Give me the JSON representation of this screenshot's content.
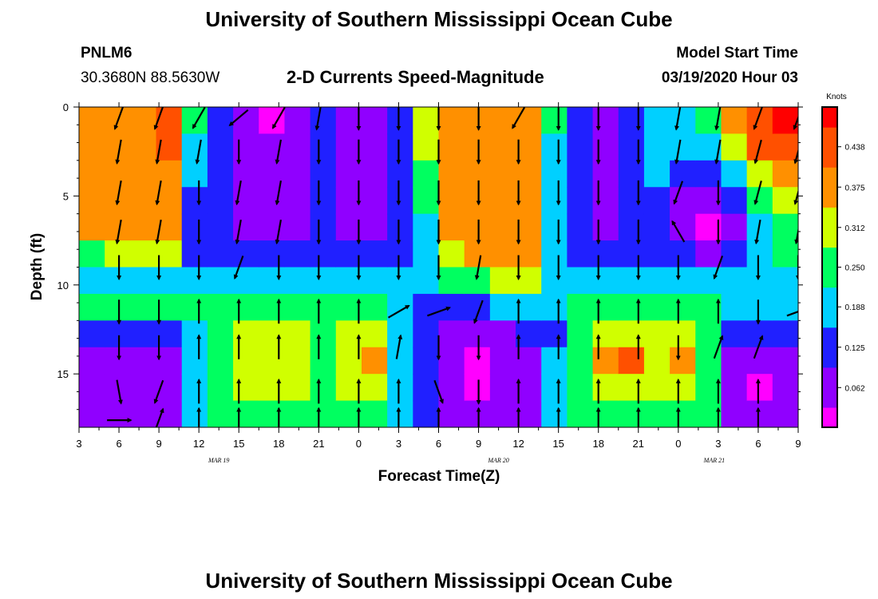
{
  "header": {
    "title": "University of Southern Mississippi Ocean Cube",
    "station": "PNLM6",
    "coordinates": "30.3680N 88.5630W",
    "subtitle": "2-D Currents Speed-Magnitude",
    "model_start_label": "Model Start Time",
    "model_start_value": "03/19/2020 Hour 03"
  },
  "footer": {
    "title": "University of Southern Mississippi Ocean Cube"
  },
  "chart_data": {
    "type": "heatmap",
    "title": "2-D Currents Speed-Magnitude",
    "xlabel": "Forecast Time(Z)",
    "ylabel": "Depth (ft)",
    "x_hours": [
      3,
      6,
      9,
      12,
      15,
      18,
      21,
      0,
      3,
      6,
      9,
      12,
      15,
      18,
      21,
      0,
      3,
      6,
      9
    ],
    "x_tick_labels": [
      "3",
      "6",
      "9",
      "12",
      "15",
      "18",
      "21",
      "0",
      "3",
      "6",
      "9",
      "12",
      "15",
      "18",
      "21",
      "0",
      "3",
      "6",
      "9"
    ],
    "date_labels": [
      {
        "text": "MAR 19",
        "index": 3.5
      },
      {
        "text": "MAR 20",
        "index": 10.5
      },
      {
        "text": "MAR 21",
        "index": 15.9
      }
    ],
    "y_ticks": [
      0,
      5,
      10,
      15
    ],
    "ylim": [
      0,
      18
    ],
    "colorbar": {
      "unit": "Knots",
      "ticks": [
        "0.438",
        "0.375",
        "0.312",
        "0.250",
        "0.188",
        "0.125",
        "0.062"
      ],
      "tick_values": [
        0.438,
        0.375,
        0.312,
        0.25,
        0.188,
        0.125,
        0.062
      ],
      "range": [
        0,
        0.5
      ],
      "colors": [
        "#ff00ff",
        "#8000ff",
        "#0000ff",
        "#00ffff",
        "#00ff00",
        "#ffff00",
        "#ff8000",
        "#ff0000"
      ]
    },
    "columns_levels": {
      "comment": "speed level index (0-8, magenta->red) per forecast column, listed for depth bands 0-1.5,1.5-3,3-4.5,4.5-6,6-7.5,7.5-9,9-10.5,10.5-12,12-13.5,13.5-15,15-16.5,16.5-18 ft",
      "depth_bands": [
        0.75,
        2.25,
        3.75,
        5.25,
        6.75,
        8.25,
        9.75,
        11.25,
        12.75,
        14.25,
        15.75,
        17.25
      ],
      "levels": [
        [
          6,
          6,
          6,
          6,
          6,
          4,
          3,
          4,
          2,
          1,
          1,
          1
        ],
        [
          6,
          6,
          6,
          6,
          6,
          5,
          3,
          4,
          2,
          1,
          1,
          1
        ],
        [
          6,
          6,
          6,
          6,
          6,
          5,
          3,
          4,
          2,
          1,
          1,
          1
        ],
        [
          7,
          7,
          6,
          6,
          6,
          5,
          3,
          4,
          2,
          1,
          1,
          1
        ],
        [
          4,
          3,
          3,
          2,
          2,
          2,
          3,
          4,
          3,
          3,
          3,
          3
        ],
        [
          2,
          2,
          2,
          2,
          2,
          2,
          3,
          4,
          4,
          4,
          4,
          4
        ],
        [
          1,
          1,
          1,
          1,
          1,
          2,
          3,
          4,
          5,
          5,
          5,
          4
        ],
        [
          0,
          1,
          1,
          1,
          1,
          2,
          3,
          4,
          5,
          5,
          5,
          4
        ],
        [
          1,
          1,
          1,
          1,
          1,
          2,
          3,
          4,
          5,
          5,
          5,
          4
        ],
        [
          2,
          2,
          2,
          2,
          2,
          2,
          3,
          4,
          4,
          4,
          4,
          4
        ],
        [
          1,
          1,
          1,
          1,
          1,
          2,
          3,
          4,
          5,
          5,
          5,
          4
        ],
        [
          1,
          1,
          1,
          1,
          1,
          2,
          3,
          4,
          5,
          6,
          5,
          4
        ],
        [
          2,
          2,
          2,
          2,
          2,
          2,
          3,
          3,
          3,
          3,
          3,
          3
        ],
        [
          5,
          5,
          4,
          4,
          3,
          3,
          3,
          2,
          2,
          2,
          2,
          2
        ],
        [
          6,
          6,
          6,
          6,
          6,
          5,
          4,
          2,
          1,
          1,
          1,
          1
        ],
        [
          6,
          6,
          6,
          6,
          6,
          6,
          4,
          2,
          1,
          0,
          0,
          1
        ],
        [
          6,
          6,
          6,
          6,
          6,
          6,
          5,
          3,
          1,
          1,
          1,
          1
        ],
        [
          6,
          6,
          6,
          6,
          6,
          6,
          5,
          3,
          2,
          1,
          1,
          1
        ],
        [
          4,
          3,
          3,
          3,
          3,
          3,
          3,
          3,
          2,
          3,
          3,
          3
        ],
        [
          2,
          2,
          2,
          2,
          2,
          2,
          3,
          4,
          4,
          4,
          4,
          4
        ],
        [
          1,
          1,
          1,
          1,
          1,
          2,
          3,
          4,
          5,
          6,
          5,
          4
        ],
        [
          2,
          2,
          2,
          2,
          2,
          2,
          3,
          4,
          5,
          7,
          5,
          4
        ],
        [
          3,
          3,
          3,
          2,
          2,
          2,
          3,
          4,
          5,
          5,
          5,
          4
        ],
        [
          3,
          3,
          2,
          1,
          1,
          2,
          3,
          4,
          5,
          6,
          5,
          4
        ],
        [
          4,
          3,
          2,
          1,
          0,
          1,
          3,
          4,
          4,
          4,
          4,
          4
        ],
        [
          6,
          5,
          3,
          2,
          1,
          2,
          3,
          3,
          2,
          1,
          1,
          1
        ],
        [
          7,
          7,
          5,
          4,
          3,
          3,
          3,
          3,
          2,
          1,
          0,
          1
        ],
        [
          8,
          7,
          6,
          5,
          4,
          4,
          3,
          3,
          2,
          1,
          1,
          1
        ]
      ]
    },
    "vectors": {
      "comment": "current direction in degrees clockwise from up (north) for each arrow row; arrows at every forecast tick",
      "depth_rows": [
        0.6,
        2.5,
        4.8,
        7.0,
        9.0,
        11.5,
        13.5,
        16.0,
        17.6
      ],
      "directions": [
        [
          null,
          200,
          200,
          210,
          230,
          210,
          190,
          180,
          180,
          180,
          180,
          210,
          180,
          180,
          180,
          190,
          190,
          200,
          200
        ],
        [
          null,
          190,
          190,
          190,
          180,
          190,
          180,
          180,
          180,
          180,
          180,
          180,
          180,
          180,
          180,
          190,
          190,
          195,
          195
        ],
        [
          null,
          190,
          190,
          180,
          190,
          190,
          180,
          180,
          180,
          180,
          180,
          180,
          180,
          180,
          180,
          200,
          180,
          195,
          195
        ],
        [
          null,
          190,
          190,
          180,
          190,
          190,
          180,
          180,
          180,
          180,
          180,
          180,
          180,
          180,
          180,
          330,
          180,
          190,
          190
        ],
        [
          null,
          180,
          180,
          180,
          200,
          180,
          180,
          180,
          180,
          180,
          190,
          180,
          180,
          180,
          180,
          180,
          200,
          180,
          180
        ],
        [
          null,
          180,
          180,
          0,
          0,
          0,
          0,
          0,
          60,
          70,
          200,
          0,
          0,
          0,
          0,
          0,
          0,
          180,
          70
        ],
        [
          null,
          180,
          180,
          0,
          0,
          0,
          0,
          0,
          10,
          180,
          180,
          0,
          0,
          0,
          0,
          180,
          20,
          20,
          null
        ],
        [
          null,
          170,
          200,
          0,
          0,
          0,
          0,
          0,
          0,
          160,
          180,
          0,
          0,
          0,
          0,
          0,
          0,
          0,
          null
        ],
        [
          null,
          90,
          20,
          0,
          0,
          0,
          0,
          0,
          0,
          0,
          0,
          0,
          0,
          0,
          0,
          0,
          0,
          0,
          null
        ]
      ]
    }
  }
}
